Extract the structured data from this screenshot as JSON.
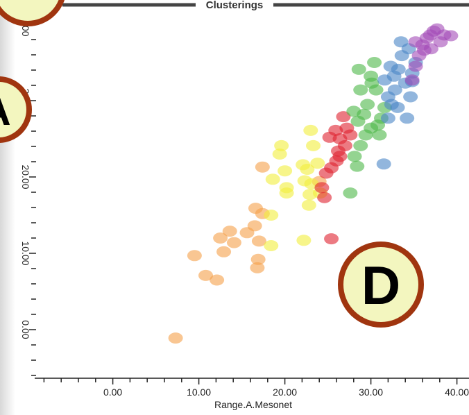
{
  "chart_data": {
    "type": "scatter",
    "title": "Clusterings",
    "x_label": "Range.A.Mesonet",
    "annotations": [
      "A",
      "D"
    ],
    "xlim": [
      -9,
      41
    ],
    "ylim": [
      -6,
      40
    ],
    "xticks": [
      {
        "value": 0,
        "label": "0.00"
      },
      {
        "value": 10,
        "label": "10.00"
      },
      {
        "value": 20,
        "label": "20.00"
      },
      {
        "value": 30,
        "label": "30.00"
      },
      {
        "value": 40,
        "label": "40.00"
      }
    ],
    "yticks": [
      {
        "value": 0,
        "label": "0.00"
      },
      {
        "value": 10,
        "label": "10.00"
      },
      {
        "value": 20,
        "label": "20.00"
      },
      {
        "value": 30,
        "label": "30.00"
      },
      {
        "value": 40,
        "label": "40.00"
      }
    ],
    "series": [
      {
        "color": "#f5a04a",
        "x": [
          7.3,
          9.5,
          10.8,
          12.1,
          12.5,
          12.9,
          13.6,
          14.1,
          15.6,
          16.5,
          16.6,
          17.0,
          16.9,
          16.8,
          17.4,
          17.4,
          24.0
        ],
        "y": [
          -1.1,
          9.7,
          7.1,
          6.5,
          12.0,
          10.2,
          12.9,
          11.4,
          12.7,
          13.6,
          15.9,
          11.6,
          9.2,
          8.1,
          21.3,
          15.2,
          19.4
        ]
      },
      {
        "color": "#f2ef3c",
        "x": [
          18.4,
          18.4,
          18.6,
          19.6,
          19.4,
          20.2,
          20.2,
          20.0,
          22.2,
          22.1,
          22.3,
          22.6,
          22.9,
          22.8,
          23.0,
          23.3,
          23.1,
          24.1,
          23.8
        ],
        "y": [
          11.0,
          15.0,
          19.7,
          24.1,
          23.0,
          18.6,
          17.9,
          20.8,
          11.7,
          21.6,
          19.5,
          21.0,
          17.7,
          16.3,
          26.1,
          24.1,
          19.1,
          17.9,
          21.8
        ]
      },
      {
        "color": "#e0222e",
        "x": [
          25.4,
          24.6,
          24.3,
          24.8,
          25.4,
          26.0,
          26.2,
          26.4,
          26.8,
          25.9,
          27.2,
          27.6,
          25.2,
          26.4,
          27.0
        ],
        "y": [
          11.9,
          17.3,
          18.6,
          20.5,
          21.2,
          22.1,
          23.4,
          25.0,
          27.9,
          26.1,
          26.4,
          25.5,
          25.2,
          22.7,
          24.1
        ]
      },
      {
        "color": "#4cb848",
        "x": [
          27.6,
          28.4,
          28.1,
          28.8,
          28.5,
          29.2,
          28.8,
          28.6,
          30.4,
          30.0,
          30.6,
          29.6,
          30.0,
          30.8,
          31.2,
          31.6,
          29.4,
          31.0,
          30.1,
          28.0
        ],
        "y": [
          17.9,
          21.4,
          22.7,
          24.1,
          27.3,
          28.2,
          31.4,
          34.1,
          35.0,
          33.2,
          31.4,
          29.5,
          26.4,
          26.8,
          27.7,
          29.1,
          25.5,
          25.5,
          32.3,
          28.6
        ]
      },
      {
        "color": "#4a86c6",
        "x": [
          31.5,
          32.0,
          32.4,
          32.8,
          32.7,
          33.2,
          33.6,
          33.5,
          34.4,
          34.0,
          34.6,
          34.2,
          34.8,
          35.2,
          33.1,
          32.0,
          31.6,
          32.3,
          34.8
        ],
        "y": [
          21.7,
          27.7,
          29.5,
          31.4,
          33.2,
          34.1,
          35.9,
          37.7,
          36.8,
          32.3,
          30.5,
          27.7,
          33.6,
          35.0,
          29.1,
          30.5,
          32.7,
          34.5,
          32.5
        ]
      },
      {
        "color": "#a44bb8",
        "x": [
          34.8,
          35.2,
          35.6,
          36.0,
          36.5,
          36.9,
          37.3,
          37.7,
          38.5,
          39.3,
          37.0,
          36.2,
          38.1,
          35.2
        ],
        "y": [
          32.7,
          34.5,
          35.9,
          37.3,
          38.2,
          38.6,
          39.1,
          39.4,
          38.6,
          38.5,
          36.8,
          36.6,
          37.7,
          37.7
        ]
      }
    ]
  }
}
